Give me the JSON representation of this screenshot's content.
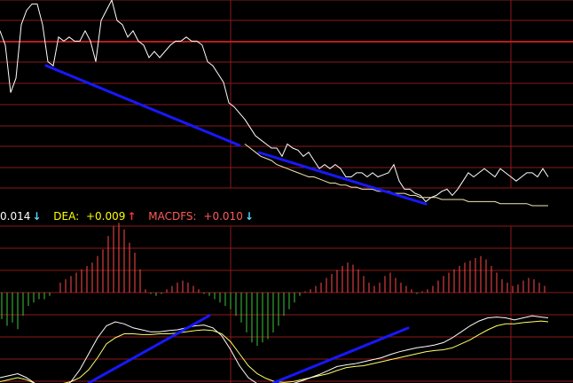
{
  "legend": {
    "macd_value": "0.014",
    "dea_label": "DEA:",
    "dea_value": "+0.009",
    "macdfs_label": "MACDFS:",
    "macdfs_value": "+0.010",
    "arrow_down": "↓",
    "arrow_up": "↑"
  },
  "colors": {
    "background": "#000000",
    "grid": "#8b1a1a",
    "highlight_line": "#b41e1e",
    "price_line": "#ffffff",
    "ma_line": "#f2e9b0",
    "trend_line": "#1818ff",
    "hist_positive": "#ff4a4a",
    "hist_negative": "#3cc83c",
    "diff_line": "#ffffff",
    "dea_line": "#ffff66"
  },
  "chart_data": [
    {
      "type": "line",
      "panel": "price",
      "x": [
        0,
        6,
        12,
        18,
        24,
        30,
        36,
        42,
        48,
        54,
        60,
        66,
        72,
        78,
        84,
        90,
        96,
        102,
        108,
        114,
        120,
        126,
        132,
        138,
        144,
        150,
        156,
        162,
        168,
        174,
        180,
        186,
        192,
        198,
        204,
        210,
        216,
        222,
        228,
        234,
        240,
        246,
        252,
        258,
        264,
        270,
        276,
        282,
        288,
        294,
        300,
        306,
        312,
        318,
        324,
        330,
        336,
        342,
        348,
        354,
        360,
        366,
        372,
        378,
        384,
        390,
        396,
        402,
        408,
        414,
        420,
        426,
        432,
        438,
        444,
        450,
        456,
        462,
        468,
        474,
        480,
        486,
        492,
        498,
        504,
        510,
        516,
        522,
        528,
        534,
        540,
        546,
        552,
        558,
        564,
        570,
        576,
        582,
        588,
        594,
        600,
        606,
        612,
        618
      ],
      "series": [
        {
          "values": [
            0.15,
            0.22,
            0.45,
            0.38,
            0.12,
            0.05,
            0.02,
            0.02,
            0.12,
            0.3,
            0.32,
            0.18,
            0.2,
            0.18,
            0.2,
            0.2,
            0.15,
            0.2,
            0.3,
            0.1,
            0.05,
            0.0,
            0.1,
            0.12,
            0.18,
            0.15,
            0.2,
            0.22,
            0.28,
            0.25,
            0.28,
            0.25,
            0.22,
            0.2,
            0.2,
            0.18,
            0.2,
            0.2,
            0.22,
            0.3,
            0.32,
            0.36,
            0.4,
            0.5,
            0.52,
            0.55,
            0.58,
            0.62,
            0.66,
            0.68,
            0.7,
            0.72,
            0.72,
            0.76,
            0.7,
            0.72,
            0.73,
            0.76,
            0.74,
            0.78,
            0.82,
            0.8,
            0.82,
            0.8,
            0.82,
            0.86,
            0.86,
            0.84,
            0.84,
            0.86,
            0.84,
            0.86,
            0.85,
            0.84,
            0.8,
            0.88,
            0.92,
            0.92,
            0.94,
            0.95,
            0.98,
            0.96,
            0.95,
            0.93,
            0.92,
            0.95,
            0.92,
            0.88,
            0.84,
            0.86,
            0.84,
            0.82,
            0.84,
            0.86,
            0.82,
            0.84,
            0.86,
            0.88,
            0.86,
            0.84,
            0.84,
            0.86,
            0.82,
            0.86
          ]
        },
        {
          "values": [
            null,
            null,
            null,
            null,
            null,
            null,
            null,
            null,
            null,
            null,
            null,
            null,
            null,
            null,
            null,
            null,
            null,
            null,
            null,
            null,
            null,
            null,
            null,
            null,
            null,
            null,
            null,
            null,
            null,
            null,
            null,
            null,
            null,
            null,
            null,
            null,
            null,
            null,
            null,
            null,
            null,
            null,
            null,
            null,
            null,
            null,
            0.7,
            0.72,
            0.74,
            0.76,
            0.77,
            0.78,
            0.8,
            0.81,
            0.82,
            0.83,
            0.84,
            0.85,
            0.86,
            0.86,
            0.87,
            0.88,
            0.89,
            0.89,
            0.9,
            0.9,
            0.91,
            0.91,
            0.92,
            0.92,
            0.92,
            0.93,
            0.93,
            0.93,
            0.94,
            0.94,
            0.94,
            0.95,
            0.95,
            0.96,
            0.96,
            0.96,
            0.96,
            0.97,
            0.97,
            0.97,
            0.97,
            0.97,
            0.98,
            0.98,
            0.98,
            0.98,
            0.98,
            0.98,
            0.99,
            0.99,
            0.99,
            0.99,
            0.99,
            0.99,
            1.0,
            1.0,
            1.0,
            1.0
          ]
        }
      ]
    },
    {
      "type": "bar",
      "panel": "histogram",
      "x": [
        2,
        8,
        14,
        20,
        26,
        32,
        38,
        44,
        50,
        56,
        62,
        68,
        74,
        80,
        86,
        92,
        98,
        104,
        110,
        116,
        122,
        128,
        134,
        140,
        146,
        152,
        158,
        164,
        170,
        176,
        182,
        188,
        194,
        200,
        206,
        212,
        218,
        224,
        230,
        236,
        242,
        248,
        254,
        260,
        266,
        272,
        278,
        284,
        290,
        296,
        302,
        308,
        314,
        320,
        326,
        332,
        338,
        344,
        350,
        356,
        362,
        368,
        374,
        380,
        386,
        392,
        398,
        404,
        410,
        416,
        422,
        428,
        434,
        440,
        446,
        452,
        458,
        464,
        470,
        476,
        482,
        488,
        494,
        500,
        506,
        512,
        518,
        524,
        530,
        536,
        542,
        548,
        554,
        560,
        566,
        572,
        578,
        584,
        590,
        596,
        602,
        608,
        614
      ],
      "values": [
        -0.4,
        -0.5,
        -0.45,
        -0.55,
        -0.35,
        -0.2,
        -0.15,
        -0.1,
        -0.1,
        -0.05,
        0.0,
        0.15,
        0.2,
        0.25,
        0.3,
        0.35,
        0.4,
        0.45,
        0.55,
        0.65,
        0.85,
        1.0,
        1.05,
        0.95,
        0.75,
        0.6,
        0.35,
        0.05,
        -0.02,
        -0.05,
        -0.02,
        0.05,
        0.1,
        0.15,
        0.18,
        0.15,
        0.1,
        0.05,
        -0.02,
        -0.05,
        -0.1,
        -0.15,
        -0.2,
        -0.25,
        -0.35,
        -0.45,
        -0.6,
        -0.75,
        -0.8,
        -0.75,
        -0.7,
        -0.6,
        -0.5,
        -0.35,
        -0.25,
        -0.15,
        -0.05,
        0.02,
        0.05,
        0.1,
        0.15,
        0.22,
        0.28,
        0.34,
        0.4,
        0.45,
        0.42,
        0.35,
        0.25,
        0.15,
        0.1,
        0.15,
        0.25,
        0.3,
        0.22,
        0.15,
        0.1,
        0.05,
        -0.02,
        0.02,
        0.05,
        0.1,
        0.18,
        0.25,
        0.3,
        0.35,
        0.4,
        0.45,
        0.48,
        0.52,
        0.55,
        0.5,
        0.4,
        0.3,
        0.2,
        0.15,
        0.1,
        0.12,
        0.18,
        0.22,
        0.2,
        0.15,
        0.1
      ]
    },
    {
      "type": "line",
      "panel": "macd",
      "x": [
        0,
        10,
        20,
        30,
        40,
        50,
        60,
        70,
        80,
        90,
        100,
        110,
        120,
        130,
        140,
        150,
        160,
        170,
        180,
        190,
        200,
        210,
        220,
        230,
        240,
        250,
        260,
        270,
        280,
        290,
        300,
        310,
        320,
        330,
        340,
        350,
        360,
        370,
        380,
        390,
        400,
        410,
        420,
        430,
        440,
        450,
        460,
        470,
        480,
        490,
        500,
        510,
        520,
        530,
        540,
        550,
        560,
        570,
        580,
        590,
        600,
        610,
        618
      ],
      "series": [
        {
          "name": "DEA",
          "values": [
            -0.9,
            -0.85,
            -0.8,
            -0.85,
            -0.95,
            -1.0,
            -1.0,
            -0.95,
            -0.9,
            -0.8,
            -0.6,
            -0.3,
            0.05,
            0.2,
            0.3,
            0.3,
            0.28,
            0.28,
            0.3,
            0.3,
            0.32,
            0.35,
            0.38,
            0.4,
            0.38,
            0.3,
            0.1,
            -0.2,
            -0.5,
            -0.7,
            -0.82,
            -0.9,
            -0.92,
            -0.9,
            -0.85,
            -0.8,
            -0.75,
            -0.7,
            -0.62,
            -0.55,
            -0.52,
            -0.5,
            -0.45,
            -0.4,
            -0.35,
            -0.3,
            -0.25,
            -0.2,
            -0.15,
            -0.12,
            -0.1,
            -0.05,
            0.05,
            0.15,
            0.28,
            0.4,
            0.5,
            0.55,
            0.55,
            0.58,
            0.6,
            0.62,
            0.6
          ]
        },
        {
          "values": [
            -0.8,
            -0.75,
            -0.7,
            -0.8,
            -0.95,
            -1.1,
            -1.2,
            -1.1,
            -0.9,
            -0.6,
            -0.2,
            0.2,
            0.5,
            0.6,
            0.55,
            0.45,
            0.4,
            0.35,
            0.35,
            0.38,
            0.4,
            0.45,
            0.5,
            0.52,
            0.45,
            0.25,
            -0.1,
            -0.5,
            -0.8,
            -0.95,
            -1.05,
            -1.05,
            -1.0,
            -0.95,
            -0.88,
            -0.8,
            -0.72,
            -0.62,
            -0.52,
            -0.48,
            -0.45,
            -0.4,
            -0.35,
            -0.3,
            -0.22,
            -0.15,
            -0.1,
            -0.05,
            -0.02,
            0.02,
            0.08,
            0.2,
            0.35,
            0.5,
            0.62,
            0.7,
            0.72,
            0.7,
            0.65,
            0.7,
            0.75,
            0.72,
            0.7
          ]
        }
      ]
    }
  ]
}
